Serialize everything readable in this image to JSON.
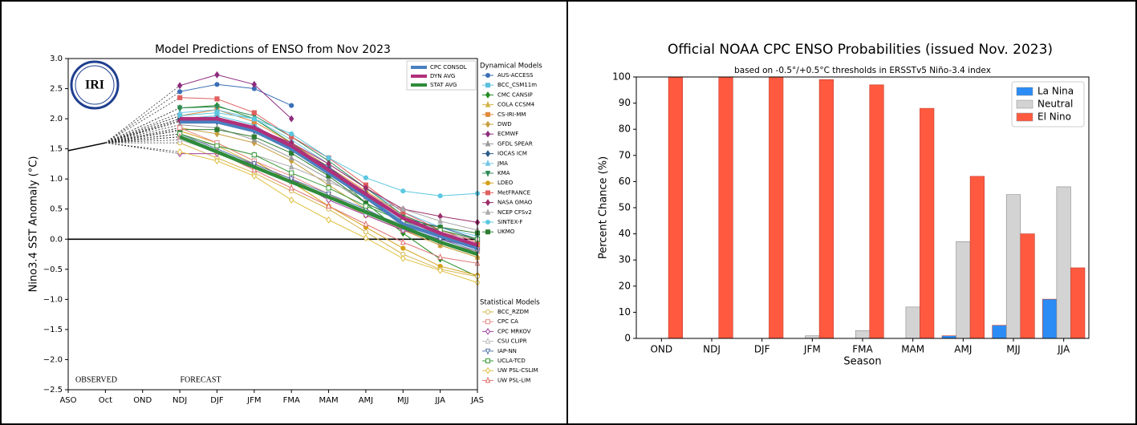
{
  "chart_data": [
    {
      "type": "line",
      "title": "Model Predictions of ENSO from Nov 2023",
      "y_label": "Nino3.4 SST Anomaly (°C)",
      "logo": "IRI",
      "annotations": [
        "OBSERVED",
        "FORECAST"
      ],
      "categories": [
        "ASO",
        "Oct",
        "OND",
        "NDJ",
        "DJF",
        "JFM",
        "FMA",
        "MAM",
        "AMJ",
        "MJJ",
        "JJA",
        "JAS"
      ],
      "ylim": [
        -2.5,
        3.0
      ],
      "yticks": [
        {
          "value": -2.5,
          "label": "−2.5"
        },
        {
          "value": -2.0,
          "label": "−2.0"
        },
        {
          "value": -1.5,
          "label": "−1.5"
        },
        {
          "value": -1.0,
          "label": "−1.0"
        },
        {
          "value": -0.5,
          "label": "−0.5"
        },
        {
          "value": 0,
          "label": "0.0"
        },
        0.5,
        {
          "value": 1,
          "label": "1.0"
        },
        1.5,
        {
          "value": 2,
          "label": "2.0"
        },
        2.5,
        {
          "value": 3,
          "label": "3.0"
        }
      ],
      "zero_line": true,
      "grid": false,
      "observed": [
        1.47,
        1.6,
        null,
        null,
        null,
        null,
        null,
        null,
        null,
        null,
        null,
        null
      ],
      "series": [
        {
          "name": "CPC CONSOL",
          "color": "#4a7fbf",
          "values": [
            null,
            null,
            null,
            1.95,
            1.95,
            1.8,
            1.5,
            1.1,
            0.7,
            0.25,
            0.05,
            -0.15
          ]
        },
        {
          "name": "DYN AVG",
          "color": "#b0307a",
          "values": [
            null,
            null,
            null,
            2.0,
            2.0,
            1.85,
            1.55,
            1.15,
            0.75,
            0.35,
            0.1,
            -0.1
          ]
        },
        {
          "name": "STAT AVG",
          "color": "#2e8b3a",
          "values": [
            null,
            null,
            null,
            1.7,
            1.45,
            1.2,
            0.95,
            0.7,
            0.45,
            0.2,
            -0.05,
            -0.25
          ]
        }
      ],
      "model_groups": [
        {
          "title": "Dynamical Models",
          "open": false,
          "series": [
            {
              "name": "AUS-ACCESS",
              "color": "#3b6fb6",
              "marker": "o",
              "values": [
                null,
                null,
                null,
                2.45,
                2.57,
                2.5,
                2.22,
                null,
                null,
                null,
                null,
                null
              ]
            },
            {
              "name": "BCC_CSM11m",
              "color": "#5bc0de",
              "marker": "s",
              "values": [
                null,
                null,
                null,
                2.0,
                2.05,
                1.9,
                1.5,
                1.1,
                0.7,
                0.3,
                0.1,
                -0.1
              ]
            },
            {
              "name": "CMC CANSIP",
              "color": "#228b22",
              "marker": "D",
              "values": [
                null,
                null,
                null,
                2.18,
                2.22,
                2.0,
                1.6,
                1.15,
                0.6,
                0.1,
                -0.33,
                -0.62
              ]
            },
            {
              "name": "COLA CCSM4",
              "color": "#d4b44a",
              "marker": "^",
              "values": [
                null,
                null,
                null,
                1.75,
                1.55,
                1.25,
                1.0,
                0.7,
                0.4,
                0.15,
                -0.1,
                -0.3
              ]
            },
            {
              "name": "CS-IRI-MM",
              "color": "#e08a3c",
              "marker": "s",
              "values": [
                null,
                null,
                null,
                2.05,
                2.15,
                1.95,
                1.6,
                1.2,
                0.8,
                0.4,
                0.1,
                -0.1
              ]
            },
            {
              "name": "DWD",
              "color": "#c8a040",
              "marker": "D",
              "values": [
                null,
                null,
                null,
                1.85,
                1.75,
                1.6,
                1.3,
                0.9,
                0.5,
                0.15,
                -0.1,
                -0.3
              ]
            },
            {
              "name": "ECMWF",
              "color": "#8e2c7e",
              "marker": "D",
              "values": [
                null,
                null,
                null,
                2.55,
                2.73,
                2.57,
                2.0,
                null,
                null,
                null,
                null,
                null
              ]
            },
            {
              "name": "GFDL SPEAR",
              "color": "#999999",
              "marker": "^",
              "values": [
                null,
                null,
                null,
                1.9,
                1.85,
                1.65,
                1.35,
                1.0,
                0.6,
                0.3,
                0.05,
                -0.15
              ]
            },
            {
              "name": "IOCAS ICM",
              "color": "#2c5b8c",
              "marker": "D",
              "values": [
                null,
                null,
                null,
                2.0,
                1.95,
                1.8,
                1.55,
                1.2,
                0.75,
                0.35,
                0.2,
                0.0
              ]
            },
            {
              "name": "JMA",
              "color": "#6fc5e8",
              "marker": "^",
              "values": [
                null,
                null,
                null,
                2.1,
                2.15,
                2.0,
                1.65,
                1.25,
                0.85,
                0.45,
                0.2,
                0.05
              ]
            },
            {
              "name": "KMA",
              "color": "#2e8b57",
              "marker": "v",
              "values": [
                null,
                null,
                null,
                2.18,
                2.2,
                2.05,
                1.7,
                1.3,
                0.85,
                0.4,
                0.15,
                0.0
              ]
            },
            {
              "name": "LDEO",
              "color": "#d4a017",
              "marker": "o",
              "values": [
                null,
                null,
                null,
                1.8,
                1.6,
                1.3,
                0.95,
                0.55,
                0.2,
                -0.15,
                -0.45,
                -0.6
              ]
            },
            {
              "name": "MetFRANCE",
              "color": "#e06060",
              "marker": "s",
              "values": [
                null,
                null,
                null,
                2.35,
                2.33,
                2.1,
                1.7,
                1.35,
                0.9,
                0.45,
                0.15,
                -0.05
              ]
            },
            {
              "name": "NASA GMAO",
              "color": "#9b2d6a",
              "marker": "D",
              "values": [
                null,
                null,
                null,
                1.97,
                2.0,
                1.85,
                1.6,
                1.25,
                0.85,
                0.5,
                0.38,
                0.28
              ]
            },
            {
              "name": "NCEP CFSv2",
              "color": "#aaaaaa",
              "marker": "^",
              "values": [
                null,
                null,
                null,
                1.7,
                1.55,
                1.4,
                1.2,
                0.95,
                0.7,
                0.5,
                0.3,
                0.15
              ]
            },
            {
              "name": "SINTEX-F",
              "color": "#5bc8e0",
              "marker": "o",
              "values": [
                null,
                null,
                null,
                2.05,
                2.1,
                2.0,
                1.75,
                1.35,
                1.02,
                0.8,
                0.72,
                0.76
              ]
            },
            {
              "name": "UKMO",
              "color": "#2e7d32",
              "marker": "s",
              "values": [
                null,
                null,
                null,
                1.82,
                1.82,
                1.7,
                1.43,
                1.05,
                0.6,
                0.3,
                0.2,
                0.1
              ]
            }
          ]
        },
        {
          "title": "Statistical Models",
          "open": true,
          "series": [
            {
              "name": "BCC_RZDM",
              "color": "#d4b44a",
              "marker": "o",
              "values": [
                null,
                null,
                null,
                1.6,
                1.35,
                1.1,
                0.8,
                0.5,
                0.12,
                -0.25,
                -0.5,
                -0.62
              ]
            },
            {
              "name": "CPC CA",
              "color": "#e88a8a",
              "marker": "s",
              "values": [
                null,
                null,
                null,
                1.85,
                1.6,
                1.3,
                1.05,
                0.75,
                0.45,
                0.15,
                -0.05,
                -0.2
              ]
            },
            {
              "name": "CPC MRKOV",
              "color": "#a040a0",
              "marker": "D",
              "values": [
                null,
                null,
                null,
                1.42,
                1.42,
                1.25,
                1.0,
                0.65,
                0.4,
                0.15,
                0.0,
                -0.15
              ]
            },
            {
              "name": "CSU CLIPR",
              "color": "#bbbbbb",
              "marker": "^",
              "values": [
                null,
                null,
                null,
                1.65,
                1.45,
                1.2,
                0.95,
                0.7,
                0.45,
                0.25,
                0.1,
                0.0
              ]
            },
            {
              "name": "IAP-NN",
              "color": "#5577aa",
              "marker": "v",
              "values": [
                null,
                null,
                null,
                1.75,
                1.5,
                1.25,
                1.0,
                0.75,
                0.5,
                0.2,
                0.0,
                -0.2
              ]
            },
            {
              "name": "UCLA-TCD",
              "color": "#3a9a3a",
              "marker": "s",
              "values": [
                null,
                null,
                null,
                1.75,
                1.55,
                1.4,
                1.1,
                0.85,
                0.55,
                0.3,
                0.15,
                0.0
              ]
            },
            {
              "name": "UW PSL-CSLIM",
              "color": "#e0c040",
              "marker": "D",
              "values": [
                null,
                null,
                null,
                1.45,
                1.3,
                1.05,
                0.65,
                0.32,
                0.02,
                -0.32,
                -0.52,
                -0.72
              ]
            },
            {
              "name": "UW PSL-LIM",
              "color": "#e07070",
              "marker": "^",
              "values": [
                null,
                null,
                null,
                1.7,
                1.45,
                1.15,
                0.85,
                0.55,
                0.25,
                -0.05,
                -0.3,
                -0.4
              ]
            }
          ]
        }
      ]
    },
    {
      "type": "bar",
      "title": "Official NOAA CPC ENSO Probabilities (issued Nov. 2023)",
      "subtitle": "based on -0.5°/+0.5°C thresholds in ERSSTv5 Niño-3.4 index",
      "y_label": "Percent Chance (%)",
      "x_label": "Season",
      "categories": [
        "OND",
        "NDJ",
        "DJF",
        "JFM",
        "FMA",
        "MAM",
        "AMJ",
        "MJJ",
        "JJA"
      ],
      "series": [
        {
          "name": "La Nina",
          "color": "#2b8cf5",
          "values": [
            0,
            0,
            0,
            0,
            0,
            0,
            1,
            5,
            15
          ]
        },
        {
          "name": "Neutral",
          "color": "#d3d3d3",
          "values": [
            0,
            0,
            0,
            1,
            3,
            12,
            37,
            55,
            58
          ]
        },
        {
          "name": "El Nino",
          "color": "#ff5a40",
          "values": [
            100,
            100,
            100,
            99,
            97,
            88,
            62,
            40,
            27
          ]
        }
      ],
      "ylim": [
        0,
        100
      ],
      "yticks": [
        0,
        10,
        20,
        30,
        40,
        50,
        60,
        70,
        80,
        90,
        100
      ],
      "grid": false,
      "legend": "upper right"
    }
  ]
}
